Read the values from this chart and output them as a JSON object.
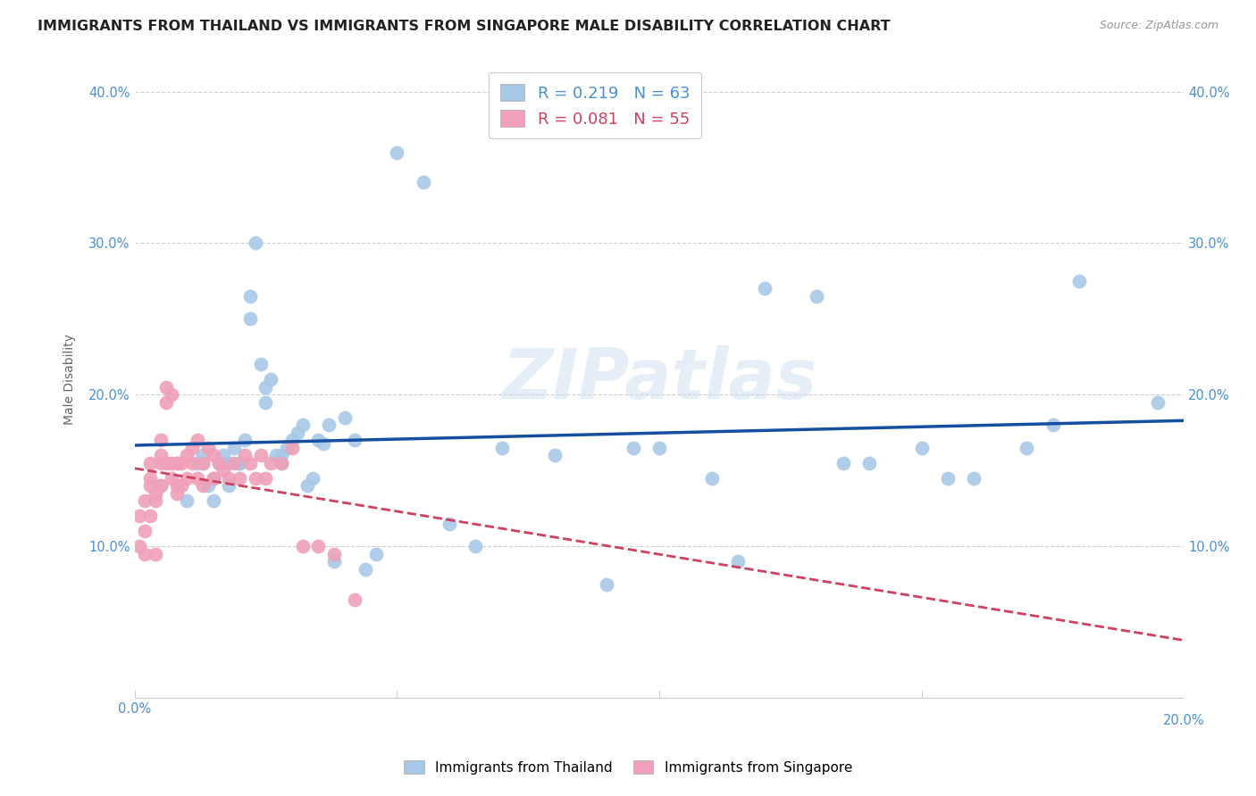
{
  "title": "IMMIGRANTS FROM THAILAND VS IMMIGRANTS FROM SINGAPORE MALE DISABILITY CORRELATION CHART",
  "source": "Source: ZipAtlas.com",
  "ylabel": "Male Disability",
  "xlim": [
    0.0,
    0.2
  ],
  "ylim": [
    0.0,
    0.42
  ],
  "x_ticks": [
    0.0,
    0.05,
    0.1,
    0.15,
    0.2
  ],
  "y_ticks": [
    0.0,
    0.1,
    0.2,
    0.3,
    0.4
  ],
  "x_tick_labels": [
    "0.0%",
    "",
    "",
    "",
    ""
  ],
  "y_tick_labels": [
    "",
    "10.0%",
    "20.0%",
    "30.0%",
    "40.0%"
  ],
  "right_y_tick_labels": [
    "",
    "10.0%",
    "20.0%",
    "30.0%",
    "40.0%"
  ],
  "legend1_R": "0.219",
  "legend1_N": "63",
  "legend2_R": "0.081",
  "legend2_N": "55",
  "thailand_color": "#a8c8e8",
  "singapore_color": "#f0a0b8",
  "trend_thailand_color": "#1550a0",
  "trend_singapore_color": "#d04060",
  "watermark": "ZIPatlas",
  "thailand_x": [
    0.005,
    0.008,
    0.01,
    0.012,
    0.013,
    0.013,
    0.014,
    0.015,
    0.015,
    0.016,
    0.017,
    0.018,
    0.018,
    0.019,
    0.02,
    0.02,
    0.021,
    0.022,
    0.022,
    0.023,
    0.024,
    0.025,
    0.025,
    0.026,
    0.027,
    0.028,
    0.028,
    0.029,
    0.03,
    0.031,
    0.032,
    0.033,
    0.034,
    0.035,
    0.036,
    0.037,
    0.038,
    0.04,
    0.042,
    0.044,
    0.046,
    0.05,
    0.055,
    0.06,
    0.065,
    0.07,
    0.08,
    0.09,
    0.1,
    0.11,
    0.12,
    0.13,
    0.14,
    0.15,
    0.16,
    0.17,
    0.18,
    0.095,
    0.115,
    0.135,
    0.155,
    0.175,
    0.195
  ],
  "thailand_y": [
    0.14,
    0.155,
    0.13,
    0.155,
    0.155,
    0.16,
    0.14,
    0.145,
    0.13,
    0.155,
    0.16,
    0.14,
    0.155,
    0.165,
    0.155,
    0.155,
    0.17,
    0.25,
    0.265,
    0.3,
    0.22,
    0.205,
    0.195,
    0.21,
    0.16,
    0.155,
    0.16,
    0.165,
    0.17,
    0.175,
    0.18,
    0.14,
    0.145,
    0.17,
    0.168,
    0.18,
    0.09,
    0.185,
    0.17,
    0.085,
    0.095,
    0.36,
    0.34,
    0.115,
    0.1,
    0.165,
    0.16,
    0.075,
    0.165,
    0.145,
    0.27,
    0.265,
    0.155,
    0.165,
    0.145,
    0.165,
    0.275,
    0.165,
    0.09,
    0.155,
    0.145,
    0.18,
    0.195
  ],
  "singapore_x": [
    0.001,
    0.001,
    0.002,
    0.002,
    0.002,
    0.003,
    0.003,
    0.003,
    0.003,
    0.004,
    0.004,
    0.004,
    0.005,
    0.005,
    0.005,
    0.005,
    0.006,
    0.006,
    0.006,
    0.007,
    0.007,
    0.007,
    0.008,
    0.008,
    0.008,
    0.009,
    0.009,
    0.01,
    0.01,
    0.011,
    0.011,
    0.012,
    0.012,
    0.013,
    0.013,
    0.014,
    0.015,
    0.015,
    0.016,
    0.017,
    0.018,
    0.019,
    0.02,
    0.021,
    0.022,
    0.023,
    0.024,
    0.025,
    0.026,
    0.028,
    0.03,
    0.032,
    0.035,
    0.038,
    0.042
  ],
  "singapore_y": [
    0.1,
    0.12,
    0.13,
    0.095,
    0.11,
    0.14,
    0.145,
    0.155,
    0.12,
    0.095,
    0.135,
    0.13,
    0.14,
    0.155,
    0.16,
    0.17,
    0.155,
    0.195,
    0.205,
    0.2,
    0.155,
    0.145,
    0.155,
    0.14,
    0.135,
    0.155,
    0.14,
    0.145,
    0.16,
    0.155,
    0.165,
    0.17,
    0.145,
    0.155,
    0.14,
    0.165,
    0.16,
    0.145,
    0.155,
    0.15,
    0.145,
    0.155,
    0.145,
    0.16,
    0.155,
    0.145,
    0.16,
    0.145,
    0.155,
    0.155,
    0.165,
    0.1,
    0.1,
    0.095,
    0.065
  ],
  "background_color": "#ffffff",
  "grid_color": "#d0d0d0",
  "axis_tick_color": "#4a90d9",
  "title_color": "#222222",
  "title_fontsize": 11.5,
  "source_fontsize": 9,
  "label_fontsize": 10,
  "tick_fontsize": 10.5
}
